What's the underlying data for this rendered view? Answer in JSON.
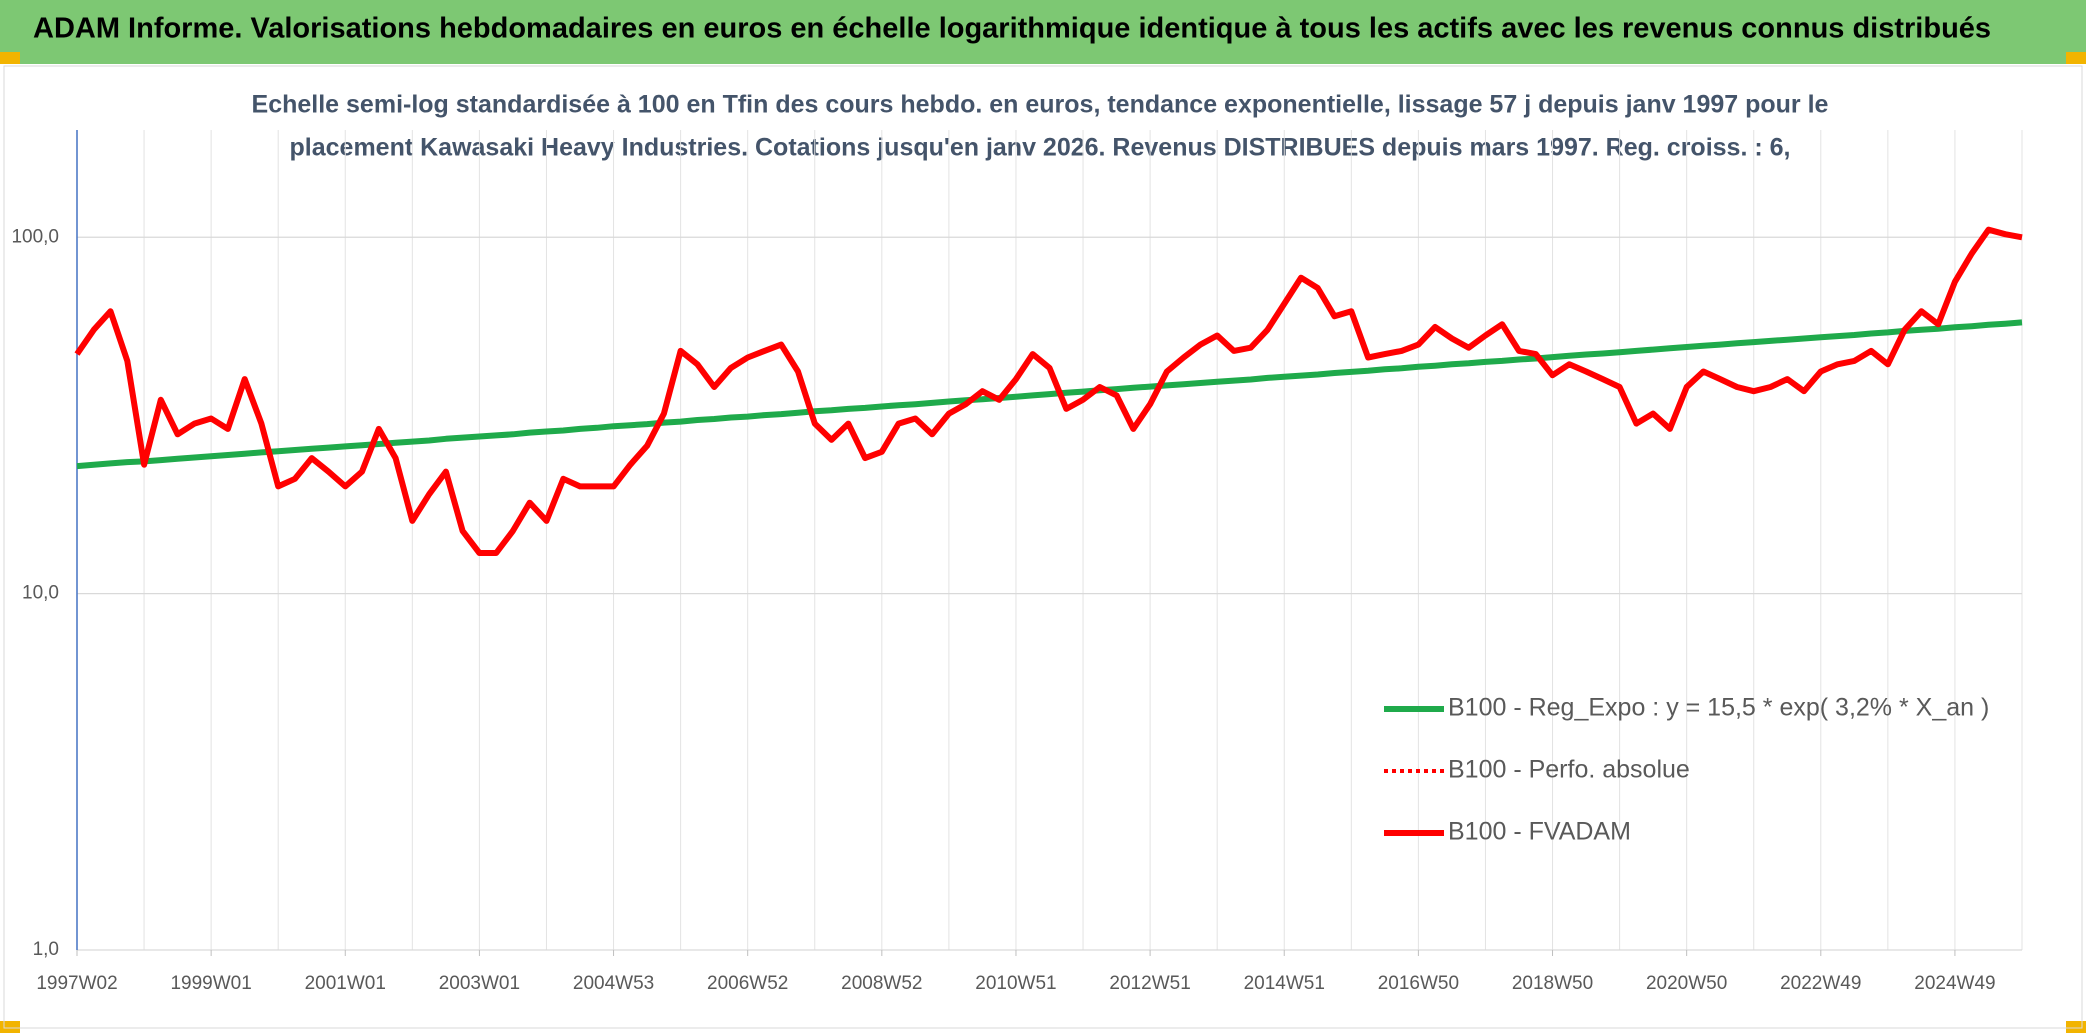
{
  "chart_data": {
    "type": "line",
    "header": "ADAM Informe. Valorisations hebdomadaires en euros en échelle logarithmique identique à tous les actifs avec les revenus connus distribués",
    "title": [
      "Echelle semi-log standardisée à 100 en Tfin des cours hebdo. en euros, tendance exponentielle, lissage 57 j depuis janv 1997 pour le",
      "placement Kawasaki Heavy Industries. Cotations jusqu'en janv 2026. Revenus DISTRIBUES depuis mars 1997. Reg. croiss. : 6,"
    ],
    "categories": [
      "1997W02",
      null,
      null,
      null,
      null,
      null,
      null,
      null,
      "1999W01",
      null,
      null,
      null,
      null,
      null,
      null,
      null,
      "2001W01",
      null,
      null,
      null,
      null,
      null,
      null,
      null,
      "2003W01",
      null,
      null,
      null,
      null,
      null,
      null,
      null,
      "2004W53",
      null,
      null,
      null,
      null,
      null,
      null,
      null,
      "2006W52",
      null,
      null,
      null,
      null,
      null,
      null,
      null,
      "2008W52",
      null,
      null,
      null,
      null,
      null,
      null,
      null,
      "2010W51",
      null,
      null,
      null,
      null,
      null,
      null,
      null,
      "2012W51",
      null,
      null,
      null,
      null,
      null,
      null,
      null,
      "2014W51",
      null,
      null,
      null,
      null,
      null,
      null,
      null,
      "2016W50",
      null,
      null,
      null,
      null,
      null,
      null,
      null,
      "2018W50",
      null,
      null,
      null,
      null,
      null,
      null,
      null,
      "2020W50",
      null,
      null,
      null,
      null,
      null,
      null,
      null,
      "2022W49",
      null,
      null,
      null,
      null,
      null,
      null,
      null,
      "2024W49",
      null,
      null,
      null,
      null
    ],
    "series": [
      {
        "name": "B100 - Reg_Expo : y = 15,5 * exp( 3,2% *  X_an )",
        "color": "#1faa4b",
        "values": [
          22.8,
          23.0,
          23.2,
          23.4,
          23.5,
          23.7,
          23.9,
          24.1,
          24.3,
          24.5,
          24.7,
          24.9,
          25.1,
          25.3,
          25.5,
          25.7,
          25.9,
          26.1,
          26.3,
          26.5,
          26.7,
          26.9,
          27.2,
          27.4,
          27.6,
          27.8,
          28.0,
          28.3,
          28.5,
          28.7,
          29.0,
          29.2,
          29.5,
          29.7,
          29.9,
          30.2,
          30.4,
          30.7,
          30.9,
          31.2,
          31.4,
          31.7,
          31.9,
          32.2,
          32.5,
          32.7,
          33.0,
          33.2,
          33.5,
          33.8,
          34.0,
          34.3,
          34.6,
          34.9,
          35.1,
          35.4,
          35.7,
          36.0,
          36.3,
          36.6,
          36.9,
          37.2,
          37.5,
          37.8,
          38.1,
          38.4,
          38.7,
          39.0,
          39.3,
          39.6,
          39.9,
          40.3,
          40.6,
          40.9,
          41.2,
          41.6,
          41.9,
          42.2,
          42.6,
          42.9,
          43.3,
          43.6,
          44.0,
          44.3,
          44.7,
          45.0,
          45.4,
          45.7,
          46.1,
          46.5,
          46.9,
          47.2,
          47.6,
          48.0,
          48.4,
          48.8,
          49.2,
          49.6,
          50.0,
          50.4,
          50.8,
          51.2,
          51.6,
          52.0,
          52.4,
          52.8,
          53.2,
          53.7,
          54.1,
          54.6,
          55.0,
          55.4,
          55.9,
          56.3,
          56.8,
          57.2,
          57.7
        ]
      },
      {
        "name": "B100 - Perfo. absolue",
        "color": "#ff0000",
        "dash": true
      },
      {
        "name": "B100 - FVADAM",
        "color": "#ff0000",
        "values": [
          47,
          55,
          62,
          45,
          23,
          35,
          28,
          30,
          31,
          29,
          40,
          30,
          20,
          21,
          24,
          22,
          20,
          22,
          29,
          24,
          16,
          19,
          22,
          15,
          13,
          13,
          15,
          18,
          16,
          21,
          20,
          20,
          20,
          23,
          26,
          32,
          48,
          44,
          38,
          43,
          46,
          48,
          50,
          42,
          30,
          27,
          30,
          24,
          25,
          30,
          31,
          28,
          32,
          34,
          37,
          35,
          40,
          47,
          43,
          33,
          35,
          38,
          36,
          29,
          34,
          42,
          46,
          50,
          53,
          48,
          49,
          55,
          65,
          77,
          72,
          60,
          62,
          46,
          47,
          48,
          50,
          56,
          52,
          49,
          53,
          57,
          48,
          47,
          41,
          44,
          42,
          40,
          38,
          30,
          32,
          29,
          38,
          42,
          40,
          38,
          37,
          38,
          40,
          37,
          42,
          44,
          45,
          48,
          44,
          55,
          62,
          57,
          75,
          90,
          105,
          102,
          100
        ]
      }
    ],
    "log_scale": true,
    "ylim": [
      1,
      200
    ],
    "yticks": [
      {
        "value": 1,
        "label": "1,0"
      },
      {
        "value": 10,
        "label": "10,0"
      },
      {
        "value": 100,
        "label": "100,0"
      }
    ],
    "grid": true,
    "legend": "right"
  }
}
